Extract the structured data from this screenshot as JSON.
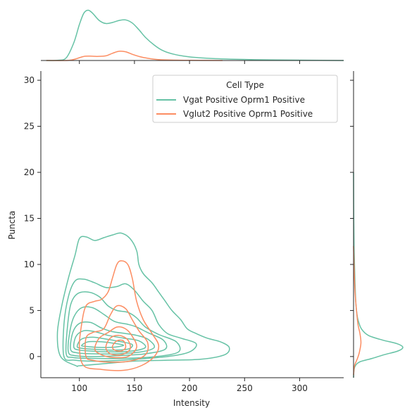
{
  "chart_data": {
    "type": "kde-joint",
    "xlabel": "Intensity",
    "ylabel": "Puncta",
    "xlim": [
      65,
      340
    ],
    "ylim": [
      -2.3,
      31
    ],
    "x_ticks": [
      100,
      150,
      200,
      250,
      300
    ],
    "y_ticks": [
      0,
      5,
      10,
      15,
      20,
      25,
      30
    ],
    "legend": {
      "title": "Cell Type",
      "placement": "upper right"
    },
    "series": [
      {
        "name": "Vgat Positive Oprm1 Positive",
        "color": "#66c2a5",
        "contour_levels": [
          [
            [
              97,
              -1
            ],
            [
              83,
              0
            ],
            [
              80,
              2.5
            ],
            [
              84,
              5.5
            ],
            [
              90,
              8.5
            ],
            [
              96,
              11
            ],
            [
              100,
              12.8
            ],
            [
              106,
              13
            ],
            [
              114,
              12.6
            ],
            [
              122,
              12.9
            ],
            [
              130,
              13.2
            ],
            [
              138,
              13.4
            ],
            [
              146,
              12.8
            ],
            [
              152,
              11.5
            ],
            [
              154,
              10
            ],
            [
              158,
              9
            ],
            [
              166,
              8
            ],
            [
              172,
              7
            ],
            [
              178,
              6
            ],
            [
              184,
              5
            ],
            [
              192,
              4
            ],
            [
              198,
              3
            ],
            [
              206,
              2.5
            ],
            [
              216,
              2
            ],
            [
              228,
              1.6
            ],
            [
              236,
              1
            ],
            [
              232,
              0.2
            ],
            [
              210,
              -0.3
            ],
            [
              180,
              -0.4
            ],
            [
              150,
              -0.5
            ],
            [
              120,
              -0.8
            ],
            [
              100,
              -1
            ]
          ],
          [
            [
              86,
              0
            ],
            [
              86,
              3.5
            ],
            [
              90,
              6.5
            ],
            [
              96,
              8.2
            ],
            [
              104,
              8.4
            ],
            [
              114,
              8
            ],
            [
              124,
              7.5
            ],
            [
              134,
              7.6
            ],
            [
              142,
              7.9
            ],
            [
              150,
              7.2
            ],
            [
              158,
              6
            ],
            [
              166,
              5
            ],
            [
              172,
              3.5
            ],
            [
              180,
              2.5
            ],
            [
              192,
              2
            ],
            [
              206,
              1.4
            ],
            [
              200,
              0.5
            ],
            [
              180,
              0
            ],
            [
              150,
              -0.3
            ],
            [
              120,
              -0.5
            ],
            [
              96,
              -0.4
            ]
          ],
          [
            [
              88,
              0.3
            ],
            [
              89,
              3
            ],
            [
              92,
              5.6
            ],
            [
              98,
              6.8
            ],
            [
              108,
              7
            ],
            [
              118,
              6.5
            ],
            [
              126,
              5.5
            ],
            [
              134,
              5
            ],
            [
              144,
              4.8
            ],
            [
              152,
              4.2
            ],
            [
              160,
              3.2
            ],
            [
              172,
              2.4
            ],
            [
              188,
              1.6
            ],
            [
              190,
              0.5
            ],
            [
              170,
              0
            ],
            [
              140,
              -0.2
            ],
            [
              112,
              -0.2
            ],
            [
              94,
              -0.1
            ]
          ],
          [
            [
              90,
              0.5
            ],
            [
              91,
              2.5
            ],
            [
              95,
              4.3
            ],
            [
              102,
              5.3
            ],
            [
              112,
              5.3
            ],
            [
              122,
              4.6
            ],
            [
              132,
              3.8
            ],
            [
              144,
              3.5
            ],
            [
              152,
              3.2
            ],
            [
              162,
              2.6
            ],
            [
              176,
              1.8
            ],
            [
              178,
              0.8
            ],
            [
              160,
              0.3
            ],
            [
              136,
              0.1
            ],
            [
              112,
              0
            ],
            [
              96,
              0.1
            ]
          ],
          [
            [
              92,
              0.8
            ],
            [
              94,
              2.6
            ],
            [
              100,
              3.6
            ],
            [
              110,
              3.7
            ],
            [
              120,
              3.1
            ],
            [
              130,
              2.7
            ],
            [
              142,
              2.5
            ],
            [
              152,
              2.3
            ],
            [
              162,
              1.9
            ],
            [
              168,
              1
            ],
            [
              156,
              0.5
            ],
            [
              134,
              0.3
            ],
            [
              112,
              0.3
            ],
            [
              98,
              0.4
            ]
          ],
          [
            [
              95,
              1
            ],
            [
              97,
              2.2
            ],
            [
              104,
              2.8
            ],
            [
              114,
              2.7
            ],
            [
              126,
              2.3
            ],
            [
              140,
              2
            ],
            [
              154,
              1.7
            ],
            [
              160,
              1
            ],
            [
              148,
              0.6
            ],
            [
              128,
              0.5
            ],
            [
              110,
              0.6
            ],
            [
              100,
              0.7
            ]
          ],
          [
            [
              98,
              1.1
            ],
            [
              102,
              1.9
            ],
            [
              112,
              2.1
            ],
            [
              124,
              1.9
            ],
            [
              138,
              1.6
            ],
            [
              148,
              1.3
            ],
            [
              144,
              0.8
            ],
            [
              128,
              0.7
            ],
            [
              112,
              0.8
            ],
            [
              102,
              0.9
            ]
          ],
          [
            [
              102,
              1.2
            ],
            [
              108,
              1.6
            ],
            [
              120,
              1.6
            ],
            [
              134,
              1.4
            ],
            [
              140,
              1.2
            ],
            [
              130,
              1
            ],
            [
              116,
              1
            ],
            [
              106,
              1.1
            ]
          ]
        ],
        "marginal_x": [
          [
            70,
            0
          ],
          [
            80,
            0.004
          ],
          [
            88,
            0.05
          ],
          [
            95,
            0.35
          ],
          [
            100,
            0.7
          ],
          [
            104,
            0.92
          ],
          [
            108,
            0.98
          ],
          [
            112,
            0.92
          ],
          [
            118,
            0.78
          ],
          [
            124,
            0.72
          ],
          [
            130,
            0.74
          ],
          [
            136,
            0.78
          ],
          [
            142,
            0.79
          ],
          [
            148,
            0.73
          ],
          [
            154,
            0.6
          ],
          [
            160,
            0.45
          ],
          [
            168,
            0.3
          ],
          [
            176,
            0.19
          ],
          [
            186,
            0.12
          ],
          [
            200,
            0.07
          ],
          [
            220,
            0.04
          ],
          [
            250,
            0.02
          ],
          [
            280,
            0.01
          ],
          [
            340,
            0
          ]
        ],
        "marginal_y": [
          [
            -2.3,
            0
          ],
          [
            -1.2,
            0.02
          ],
          [
            -0.6,
            0.12
          ],
          [
            -0.2,
            0.38
          ],
          [
            0.2,
            0.62
          ],
          [
            0.6,
            0.9
          ],
          [
            1,
            1
          ],
          [
            1.4,
            0.88
          ],
          [
            1.8,
            0.58
          ],
          [
            2.3,
            0.3
          ],
          [
            3,
            0.16
          ],
          [
            4,
            0.09
          ],
          [
            5,
            0.06
          ],
          [
            6,
            0.045
          ],
          [
            8,
            0.03
          ],
          [
            10,
            0.02
          ],
          [
            12,
            0.01
          ],
          [
            15,
            0.004
          ],
          [
            20,
            0
          ]
        ]
      },
      {
        "name": "Vglut2 Positive Oprm1 Positive",
        "color": "#fc8d62",
        "contour_levels": [
          [
            [
              104,
              -1
            ],
            [
              100,
              1
            ],
            [
              102,
              3.5
            ],
            [
              106,
              5.5
            ],
            [
              114,
              6
            ],
            [
              120,
              6.2
            ],
            [
              126,
              7
            ],
            [
              130,
              8.5
            ],
            [
              134,
              10
            ],
            [
              138,
              10.4
            ],
            [
              144,
              10
            ],
            [
              148,
              8.5
            ],
            [
              152,
              6
            ],
            [
              158,
              4
            ],
            [
              166,
              2.5
            ],
            [
              172,
              1.2
            ],
            [
              168,
              0
            ],
            [
              156,
              -1
            ],
            [
              140,
              -1.5
            ],
            [
              120,
              -1.4
            ]
          ],
          [
            [
              106,
              0
            ],
            [
              106,
              2
            ],
            [
              112,
              2.6
            ],
            [
              122,
              3
            ],
            [
              128,
              4.5
            ],
            [
              134,
              5.5
            ],
            [
              142,
              5.2
            ],
            [
              148,
              4
            ],
            [
              154,
              2.8
            ],
            [
              162,
              1.5
            ],
            [
              160,
              0.2
            ],
            [
              146,
              -0.5
            ],
            [
              126,
              -0.6
            ],
            [
              112,
              -0.4
            ]
          ],
          [
            [
              114,
              0.8
            ],
            [
              118,
              2
            ],
            [
              126,
              2.6
            ],
            [
              134,
              3.2
            ],
            [
              142,
              3
            ],
            [
              148,
              2.2
            ],
            [
              152,
              1
            ],
            [
              144,
              0
            ],
            [
              130,
              -0.1
            ],
            [
              120,
              0.2
            ]
          ],
          [
            [
              124,
              1
            ],
            [
              128,
              2
            ],
            [
              136,
              2.3
            ],
            [
              144,
              1.8
            ],
            [
              146,
              0.8
            ],
            [
              138,
              0.2
            ],
            [
              128,
              0.3
            ]
          ],
          [
            [
              130,
              1.1
            ],
            [
              134,
              1.7
            ],
            [
              140,
              1.7
            ],
            [
              142,
              1
            ],
            [
              138,
              0.6
            ],
            [
              132,
              0.7
            ]
          ]
        ],
        "marginal_x": [
          [
            70,
            0
          ],
          [
            90,
            0.002
          ],
          [
            98,
            0.04
          ],
          [
            104,
            0.08
          ],
          [
            110,
            0.085
          ],
          [
            116,
            0.08
          ],
          [
            124,
            0.09
          ],
          [
            130,
            0.14
          ],
          [
            136,
            0.18
          ],
          [
            142,
            0.17
          ],
          [
            148,
            0.12
          ],
          [
            154,
            0.08
          ],
          [
            160,
            0.05
          ],
          [
            170,
            0.02
          ],
          [
            180,
            0.01
          ],
          [
            200,
            0.003
          ],
          [
            230,
            0
          ]
        ],
        "marginal_y": [
          [
            -2,
            0
          ],
          [
            -1,
            0.02
          ],
          [
            -0.2,
            0.08
          ],
          [
            0.5,
            0.12
          ],
          [
            1.5,
            0.15
          ],
          [
            2.5,
            0.13
          ],
          [
            3.5,
            0.09
          ],
          [
            5,
            0.06
          ],
          [
            7,
            0.03
          ],
          [
            9,
            0.015
          ],
          [
            12,
            0
          ]
        ]
      }
    ]
  }
}
